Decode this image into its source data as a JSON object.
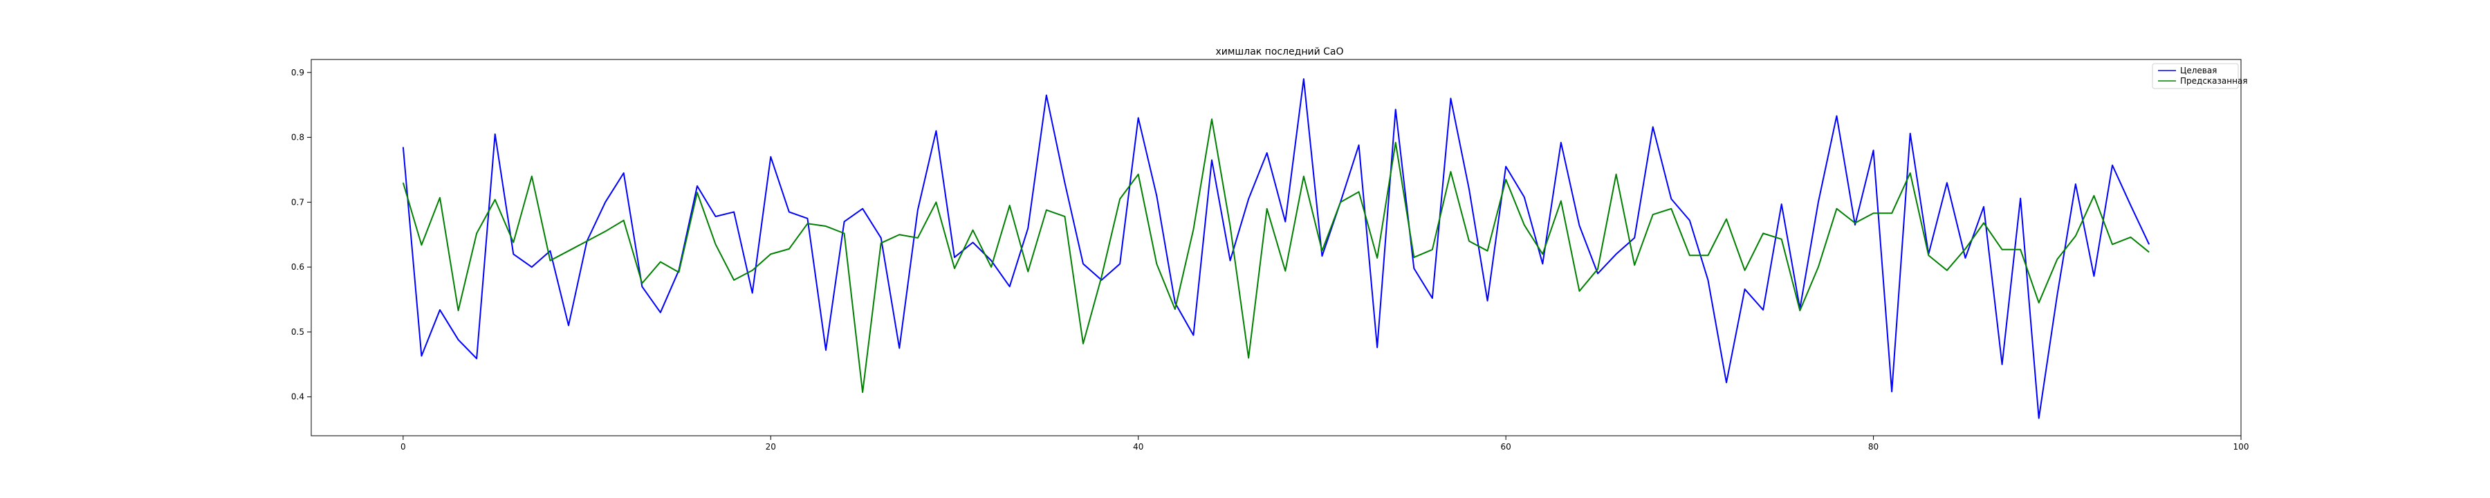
{
  "chart_data": {
    "type": "line",
    "title": "химшлак последний CaO",
    "xlabel": "",
    "ylabel": "",
    "xlim": [
      -5,
      100
    ],
    "ylim": [
      0.34,
      0.92
    ],
    "xticks": [
      0,
      20,
      40,
      60,
      80,
      100
    ],
    "yticks": [
      0.4,
      0.5,
      0.6,
      0.7,
      0.8,
      0.9
    ],
    "grid": false,
    "legend_position": "top-right",
    "series": [
      {
        "name": "Целевая",
        "color": "#0000ff",
        "values": [
          0.785,
          0.463,
          0.534,
          0.488,
          0.459,
          0.805,
          0.62,
          0.6,
          0.625,
          0.51,
          0.64,
          0.7,
          0.745,
          0.57,
          0.53,
          0.595,
          0.725,
          0.678,
          0.685,
          0.56,
          0.77,
          0.685,
          0.675,
          0.472,
          0.67,
          0.69,
          0.645,
          0.475,
          0.688,
          0.81,
          0.615,
          0.638,
          0.61,
          0.57,
          0.66,
          0.865,
          0.73,
          0.605,
          0.58,
          0.605,
          0.83,
          0.71,
          0.545,
          0.495,
          0.765,
          0.61,
          0.705,
          0.776,
          0.67,
          0.89,
          0.617,
          0.7,
          0.788,
          0.476,
          0.843,
          0.598,
          0.552,
          0.86,
          0.72,
          0.548,
          0.755,
          0.708,
          0.605,
          0.792,
          0.664,
          0.59,
          0.62,
          0.645,
          0.816,
          0.705,
          0.672,
          0.58,
          0.422,
          0.566,
          0.534,
          0.697,
          0.536,
          0.7,
          0.833,
          0.665,
          0.78,
          0.408,
          0.806,
          0.62,
          0.73,
          0.614,
          0.693,
          0.45,
          0.706,
          0.367,
          0.557,
          0.728,
          0.586,
          0.757,
          0.695,
          0.635
        ]
      },
      {
        "name": "Предсказанная",
        "color": "#008000",
        "values": [
          0.73,
          0.634,
          0.707,
          0.533,
          0.652,
          0.704,
          0.638,
          0.74,
          0.61,
          0.625,
          0.64,
          0.655,
          0.672,
          0.575,
          0.608,
          0.592,
          0.715,
          0.635,
          0.58,
          0.595,
          0.62,
          0.628,
          0.667,
          0.663,
          0.652,
          0.407,
          0.637,
          0.65,
          0.645,
          0.7,
          0.598,
          0.657,
          0.6,
          0.695,
          0.593,
          0.688,
          0.678,
          0.482,
          0.585,
          0.705,
          0.743,
          0.605,
          0.535,
          0.658,
          0.828,
          0.663,
          0.46,
          0.69,
          0.594,
          0.74,
          0.625,
          0.7,
          0.716,
          0.614,
          0.792,
          0.615,
          0.627,
          0.747,
          0.64,
          0.625,
          0.735,
          0.665,
          0.62,
          0.702,
          0.563,
          0.597,
          0.743,
          0.603,
          0.681,
          0.69,
          0.618,
          0.618,
          0.674,
          0.595,
          0.652,
          0.643,
          0.533,
          0.6,
          0.69,
          0.668,
          0.683,
          0.683,
          0.745,
          0.618,
          0.595,
          0.628,
          0.668,
          0.627,
          0.627,
          0.545,
          0.612,
          0.648,
          0.71,
          0.635,
          0.646,
          0.623
        ]
      }
    ]
  }
}
